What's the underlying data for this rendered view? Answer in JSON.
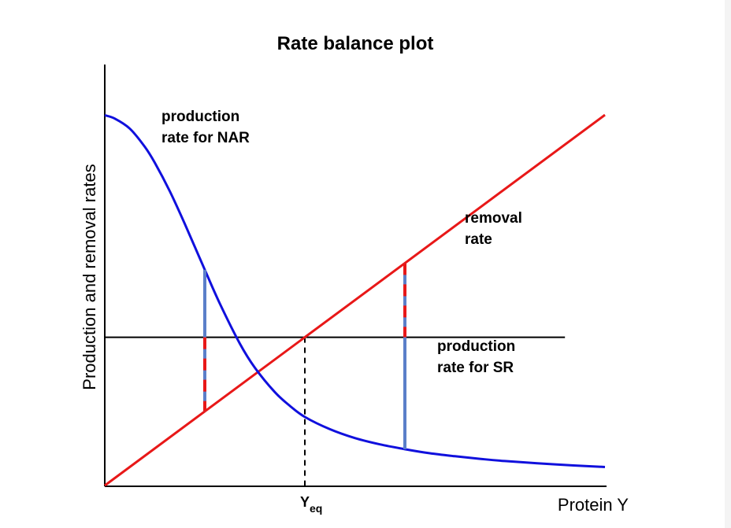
{
  "chart_data": {
    "type": "line",
    "title": "Rate balance plot",
    "xlabel": "Protein Y",
    "ylabel": "Production and removal rates",
    "x_tick_label": {
      "main": "Y",
      "sub": "eq"
    },
    "x_equilibrium": 0.4,
    "xlim": [
      0,
      1
    ],
    "ylim": [
      0,
      1
    ],
    "grid": false,
    "legend": "none",
    "series": [
      {
        "key": "nar",
        "label_lines": [
          "production",
          "rate for NAR"
        ],
        "color": "#1010dd",
        "x": [
          0,
          0.02,
          0.05,
          0.08,
          0.1,
          0.13,
          0.16,
          0.2,
          0.23,
          0.27,
          0.3,
          0.34,
          0.37,
          0.4,
          0.45,
          0.5,
          0.55,
          0.6,
          0.65,
          0.7,
          0.75,
          0.8,
          0.9,
          1.0
        ],
        "y": [
          0.999,
          0.99,
          0.963,
          0.914,
          0.871,
          0.794,
          0.706,
          0.582,
          0.491,
          0.383,
          0.318,
          0.252,
          0.215,
          0.185,
          0.152,
          0.128,
          0.111,
          0.098,
          0.087,
          0.079,
          0.072,
          0.066,
          0.057,
          0.05
        ]
      },
      {
        "key": "removal",
        "label_lines": [
          "removal",
          "rate"
        ],
        "color": "#e81818",
        "x": [
          0,
          1.0
        ],
        "y": [
          0,
          1.0
        ]
      },
      {
        "key": "sr",
        "label_lines": [
          "production",
          "rate for SR"
        ],
        "color": "#000000",
        "x": [
          0,
          0.92
        ],
        "y": [
          0.4,
          0.4
        ]
      }
    ],
    "markers": [
      {
        "x": 0.2,
        "colors": [
          "#5b7fc9",
          "#e81818"
        ]
      },
      {
        "x": 0.6,
        "colors": [
          "#5b7fc9",
          "#e81818"
        ]
      }
    ]
  }
}
